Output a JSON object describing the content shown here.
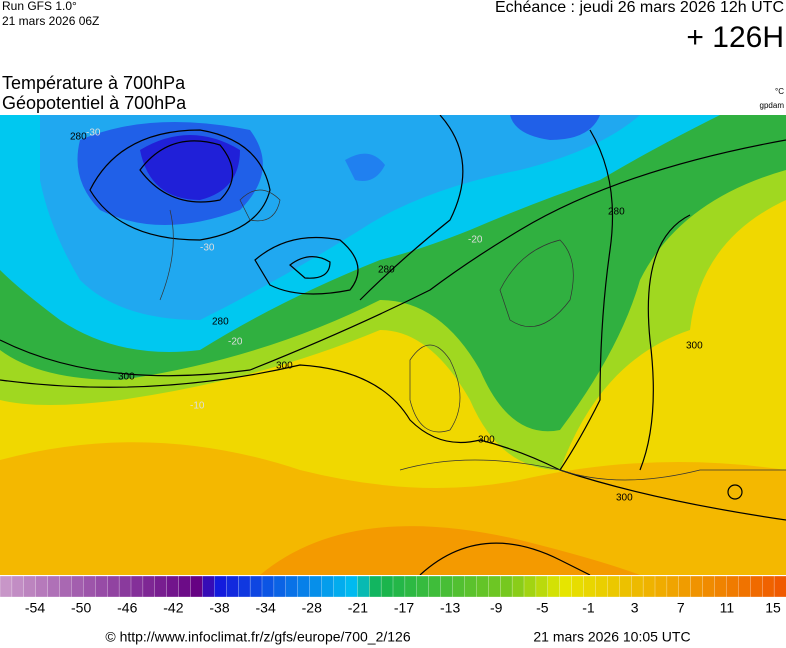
{
  "header": {
    "run": "Run GFS 1.0°",
    "run_date": "21 mars 2026 06Z",
    "echeance": "Echéance : jeudi 26 mars 2026 12h UTC",
    "lead": "+ 126H",
    "title_line1": "Température à 700hPa",
    "title_line2": "Géopotentiel à 700hPa",
    "unit_temp": "°C",
    "unit_geo": "gpdam"
  },
  "map": {
    "contour_labels": [
      "280",
      "300",
      "300",
      "300",
      "300",
      "300",
      "280",
      "280",
      "280",
      "-30",
      "-30",
      "-20",
      "-20",
      "-10"
    ]
  },
  "colorbar": {
    "labels": [
      "-54",
      "-50",
      "-46",
      "-42",
      "-38",
      "-34",
      "-28",
      "-21",
      "-17",
      "-13",
      "-9",
      "-5",
      "-1",
      "3",
      "7",
      "11",
      "15"
    ]
  },
  "footer": {
    "source": "© http://www.infoclimat.fr/z/gfs/europe/700_2/126",
    "generated": "21 mars 2026 10:05 UTC"
  }
}
